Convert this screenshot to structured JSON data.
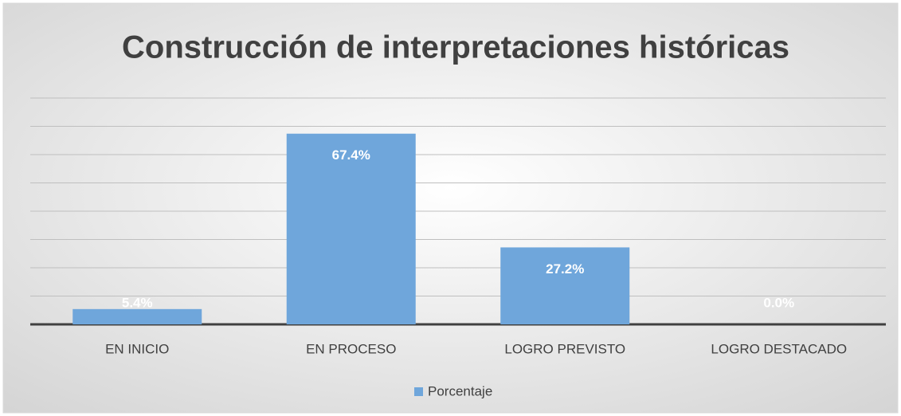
{
  "chart_data": {
    "type": "bar",
    "title": "Construcción de interpretaciones históricas",
    "categories": [
      "EN INICIO",
      "EN PROCESO",
      "LOGRO PREVISTO",
      "LOGRO DESTACADO"
    ],
    "series": [
      {
        "name": "Porcentaje",
        "color": "#6fa6db",
        "values": [
          5.4,
          67.4,
          27.2,
          0.0
        ],
        "value_labels": [
          "5.4%",
          "67.4%",
          "27.2%",
          "0.0%"
        ]
      }
    ],
    "ylim": [
      0,
      80
    ],
    "yticks": [
      0,
      10,
      20,
      30,
      40,
      50,
      60,
      70,
      80
    ],
    "grid": true,
    "legend": "bottom"
  }
}
